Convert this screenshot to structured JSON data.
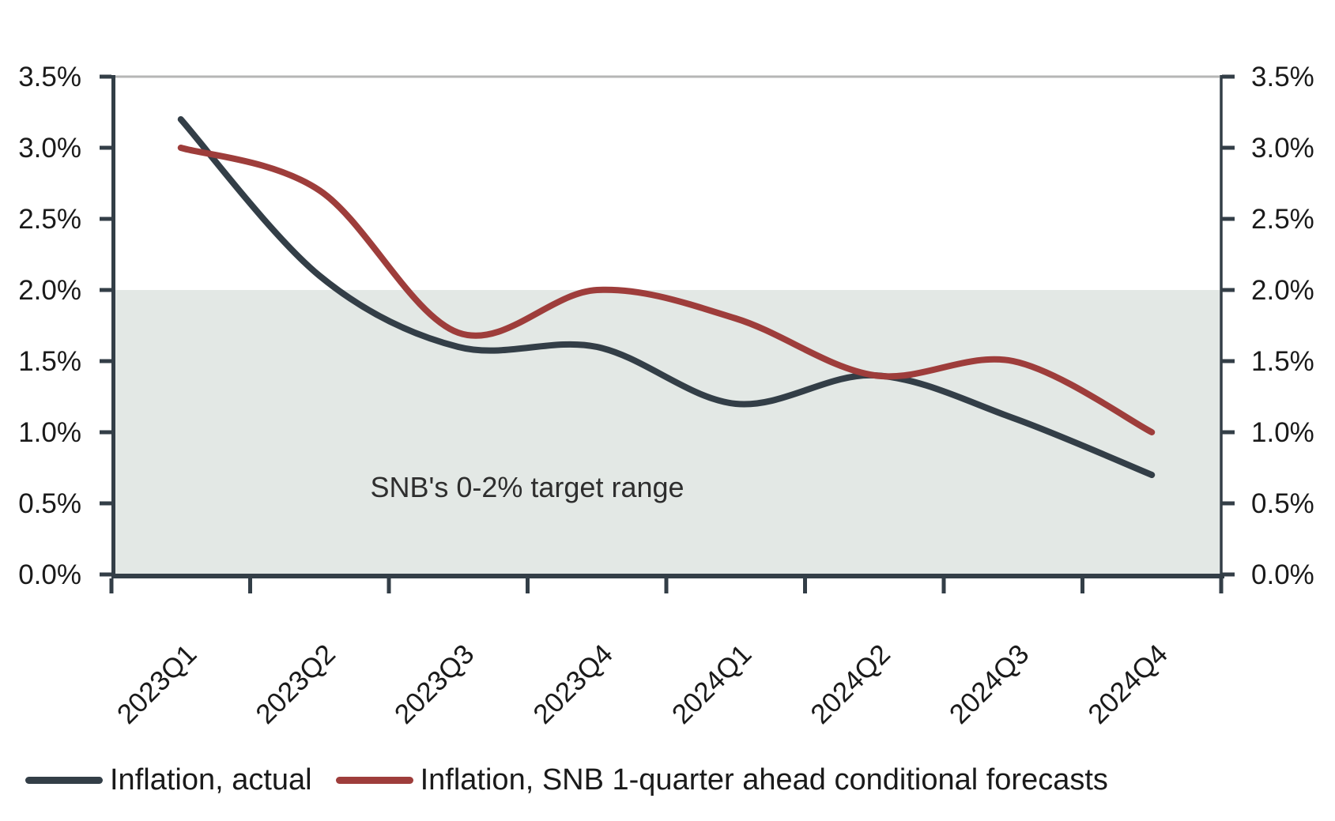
{
  "chart_data": {
    "type": "line",
    "categories": [
      "2023Q1",
      "2023Q2",
      "2023Q3",
      "2023Q4",
      "2024Q1",
      "2024Q2",
      "2024Q3",
      "2024Q4"
    ],
    "series": [
      {
        "name": "Inflation, actual",
        "color": "#333e47",
        "values": [
          3.2,
          2.1,
          1.6,
          1.6,
          1.2,
          1.4,
          1.1,
          0.7
        ]
      },
      {
        "name": "Inflation, SNB 1-quarter ahead conditional forecasts",
        "color": "#9e3d3b",
        "values": [
          3.0,
          2.7,
          1.7,
          2.0,
          1.8,
          1.4,
          1.5,
          1.0
        ]
      }
    ],
    "y_ticks": [
      "0.0%",
      "0.5%",
      "1.0%",
      "1.5%",
      "2.0%",
      "2.5%",
      "3.0%",
      "3.5%"
    ],
    "y_tick_values": [
      0,
      0.5,
      1.0,
      1.5,
      2.0,
      2.5,
      3.0,
      3.5
    ],
    "ylim": [
      0,
      3.5
    ],
    "y_axis_sides": "both",
    "xlabel": "",
    "ylabel": "",
    "title": "",
    "grid": "top-line-only",
    "line_style": "smooth-spline",
    "target_band": {
      "label": "SNB's 0-2% target range",
      "from": 0,
      "to": 2,
      "color": "#e3e8e5"
    },
    "legend_position": "bottom-left"
  },
  "colors": {
    "background": "#ffffff",
    "axis": "#333e47",
    "top_gridline": "#b5b6b5",
    "tick_text": "#1a1a1a",
    "band_text": "#2e2e2e"
  }
}
